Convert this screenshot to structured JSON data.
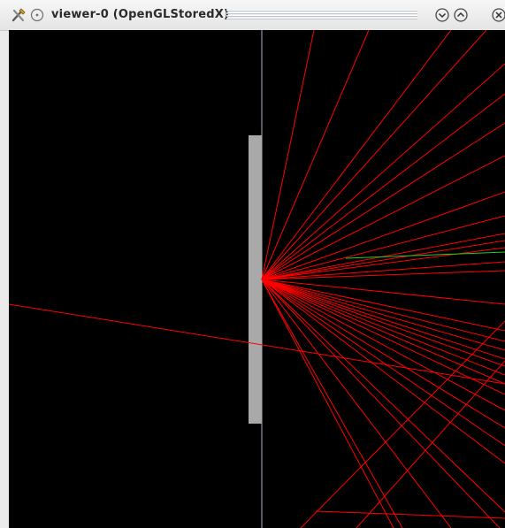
{
  "window": {
    "title": "viewer-0 (OpenGLStoredX)",
    "icons": {
      "app": "tools-icon",
      "menu": "circle-menu-icon",
      "minimize": "chevron-down-icon",
      "maximize": "chevron-up-icon",
      "close": "close-icon"
    }
  },
  "scene": {
    "background_color": "#000000",
    "ray_color": "#ff0000",
    "secondary_ray_color": "#22cc22",
    "plate_color": "#a9a9a9",
    "axis_color": "#aab3c4"
  }
}
